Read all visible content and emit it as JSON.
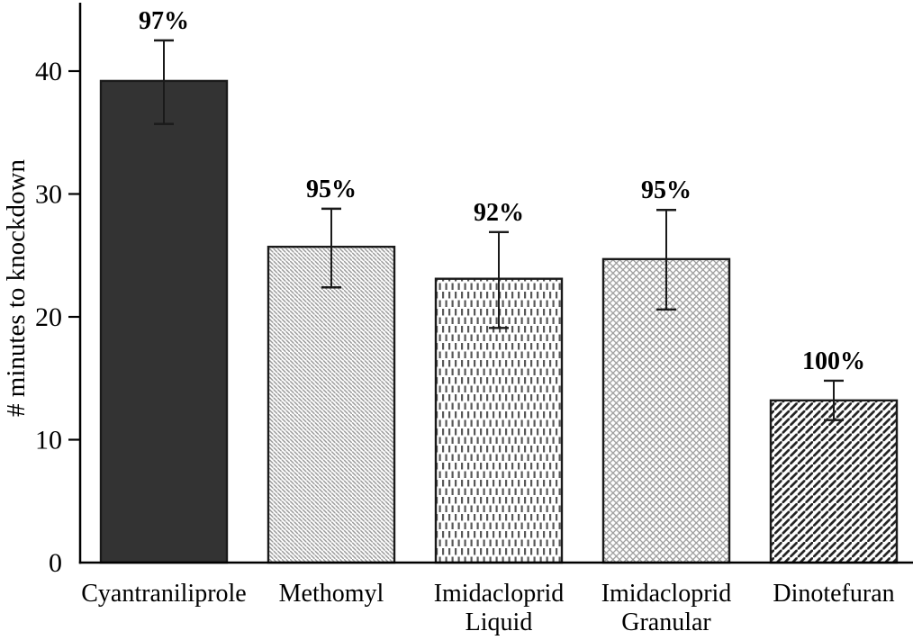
{
  "chart_data": {
    "type": "bar",
    "title": "",
    "xlabel": "",
    "ylabel": "# minutes to knockdown",
    "ylim": [
      0,
      45
    ],
    "yticks": [
      0,
      10,
      20,
      30,
      40
    ],
    "grid": false,
    "legend_position": "none",
    "categories": [
      "Cyantraniliprole",
      "Methomyl",
      "Imidacloprid Liquid",
      "Imidacloprid Granular",
      "Dinotefuran"
    ],
    "bars": [
      {
        "category": "Cyantraniliprole",
        "label_lines": [
          "Cyantraniliprole"
        ],
        "value": 39.2,
        "error_high": 42.5,
        "error_low": 35.7,
        "percent_label": "97%",
        "pattern": "solid-dark"
      },
      {
        "category": "Methomyl",
        "label_lines": [
          "Methomyl"
        ],
        "value": 25.7,
        "error_high": 28.8,
        "error_low": 22.4,
        "percent_label": "95%",
        "pattern": "thin-diagonal-backslash"
      },
      {
        "category": "Imidacloprid Liquid",
        "label_lines": [
          "Imidacloprid",
          "Liquid"
        ],
        "value": 23.1,
        "error_high": 26.9,
        "error_low": 19.1,
        "percent_label": "92%",
        "pattern": "vertical-dashes"
      },
      {
        "category": "Imidacloprid Granular",
        "label_lines": [
          "Imidacloprid",
          "Granular"
        ],
        "value": 24.7,
        "error_high": 28.7,
        "error_low": 20.6,
        "percent_label": "95%",
        "pattern": "diagonal-crosshatch"
      },
      {
        "category": "Dinotefuran",
        "label_lines": [
          "Dinotefuran"
        ],
        "value": 13.2,
        "error_high": 14.8,
        "error_low": 11.6,
        "percent_label": "100%",
        "pattern": "wide-diagonal-slash"
      }
    ],
    "colors": {
      "background": "#ffffff",
      "solid_bar_fill": "#333333",
      "bar_outline": "#1a1a1a",
      "axis": "#000000",
      "error_bar": "#1a1a1a",
      "text": "#000000",
      "hatch_gray": "#979797",
      "hatch_dark": "#222222"
    }
  }
}
